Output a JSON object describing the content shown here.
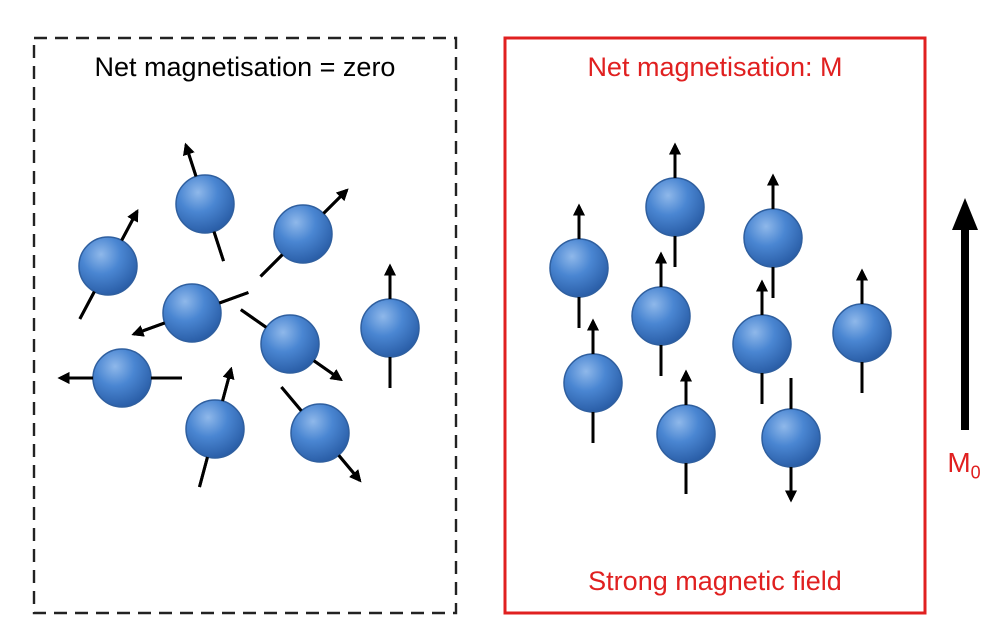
{
  "colors": {
    "spin_fill_top": "#6fa2e0",
    "spin_fill_mid": "#3f7fd0",
    "spin_fill_bottom": "#2a5da8",
    "spin_stroke": "#2f5f9f",
    "arrow": "#000000",
    "accent_red": "#e02020",
    "dashed_box": "#222222"
  },
  "left_panel": {
    "title": "Net magnetisation = zero",
    "title_color": "#000000",
    "border": "dashed",
    "spins": [
      {
        "dir": "up-right-steep"
      },
      {
        "dir": "up-right"
      },
      {
        "dir": "up-left"
      },
      {
        "dir": "up"
      },
      {
        "dir": "down-left"
      },
      {
        "dir": "down-right"
      },
      {
        "dir": "left"
      },
      {
        "dir": "up"
      },
      {
        "dir": "down-right"
      }
    ]
  },
  "right_panel": {
    "title": "Net magnetisation: M",
    "footer": "Strong magnetic field",
    "text_color": "#e02020",
    "border": "solid",
    "spins": [
      {
        "dir": "up"
      },
      {
        "dir": "up"
      },
      {
        "dir": "up"
      },
      {
        "dir": "up"
      },
      {
        "dir": "up"
      },
      {
        "dir": "up"
      },
      {
        "dir": "up"
      },
      {
        "dir": "up"
      },
      {
        "dir": "down"
      }
    ]
  },
  "field_arrow": {
    "label": "M",
    "label_sub": "0",
    "direction": "up",
    "label_color": "#e02020"
  }
}
